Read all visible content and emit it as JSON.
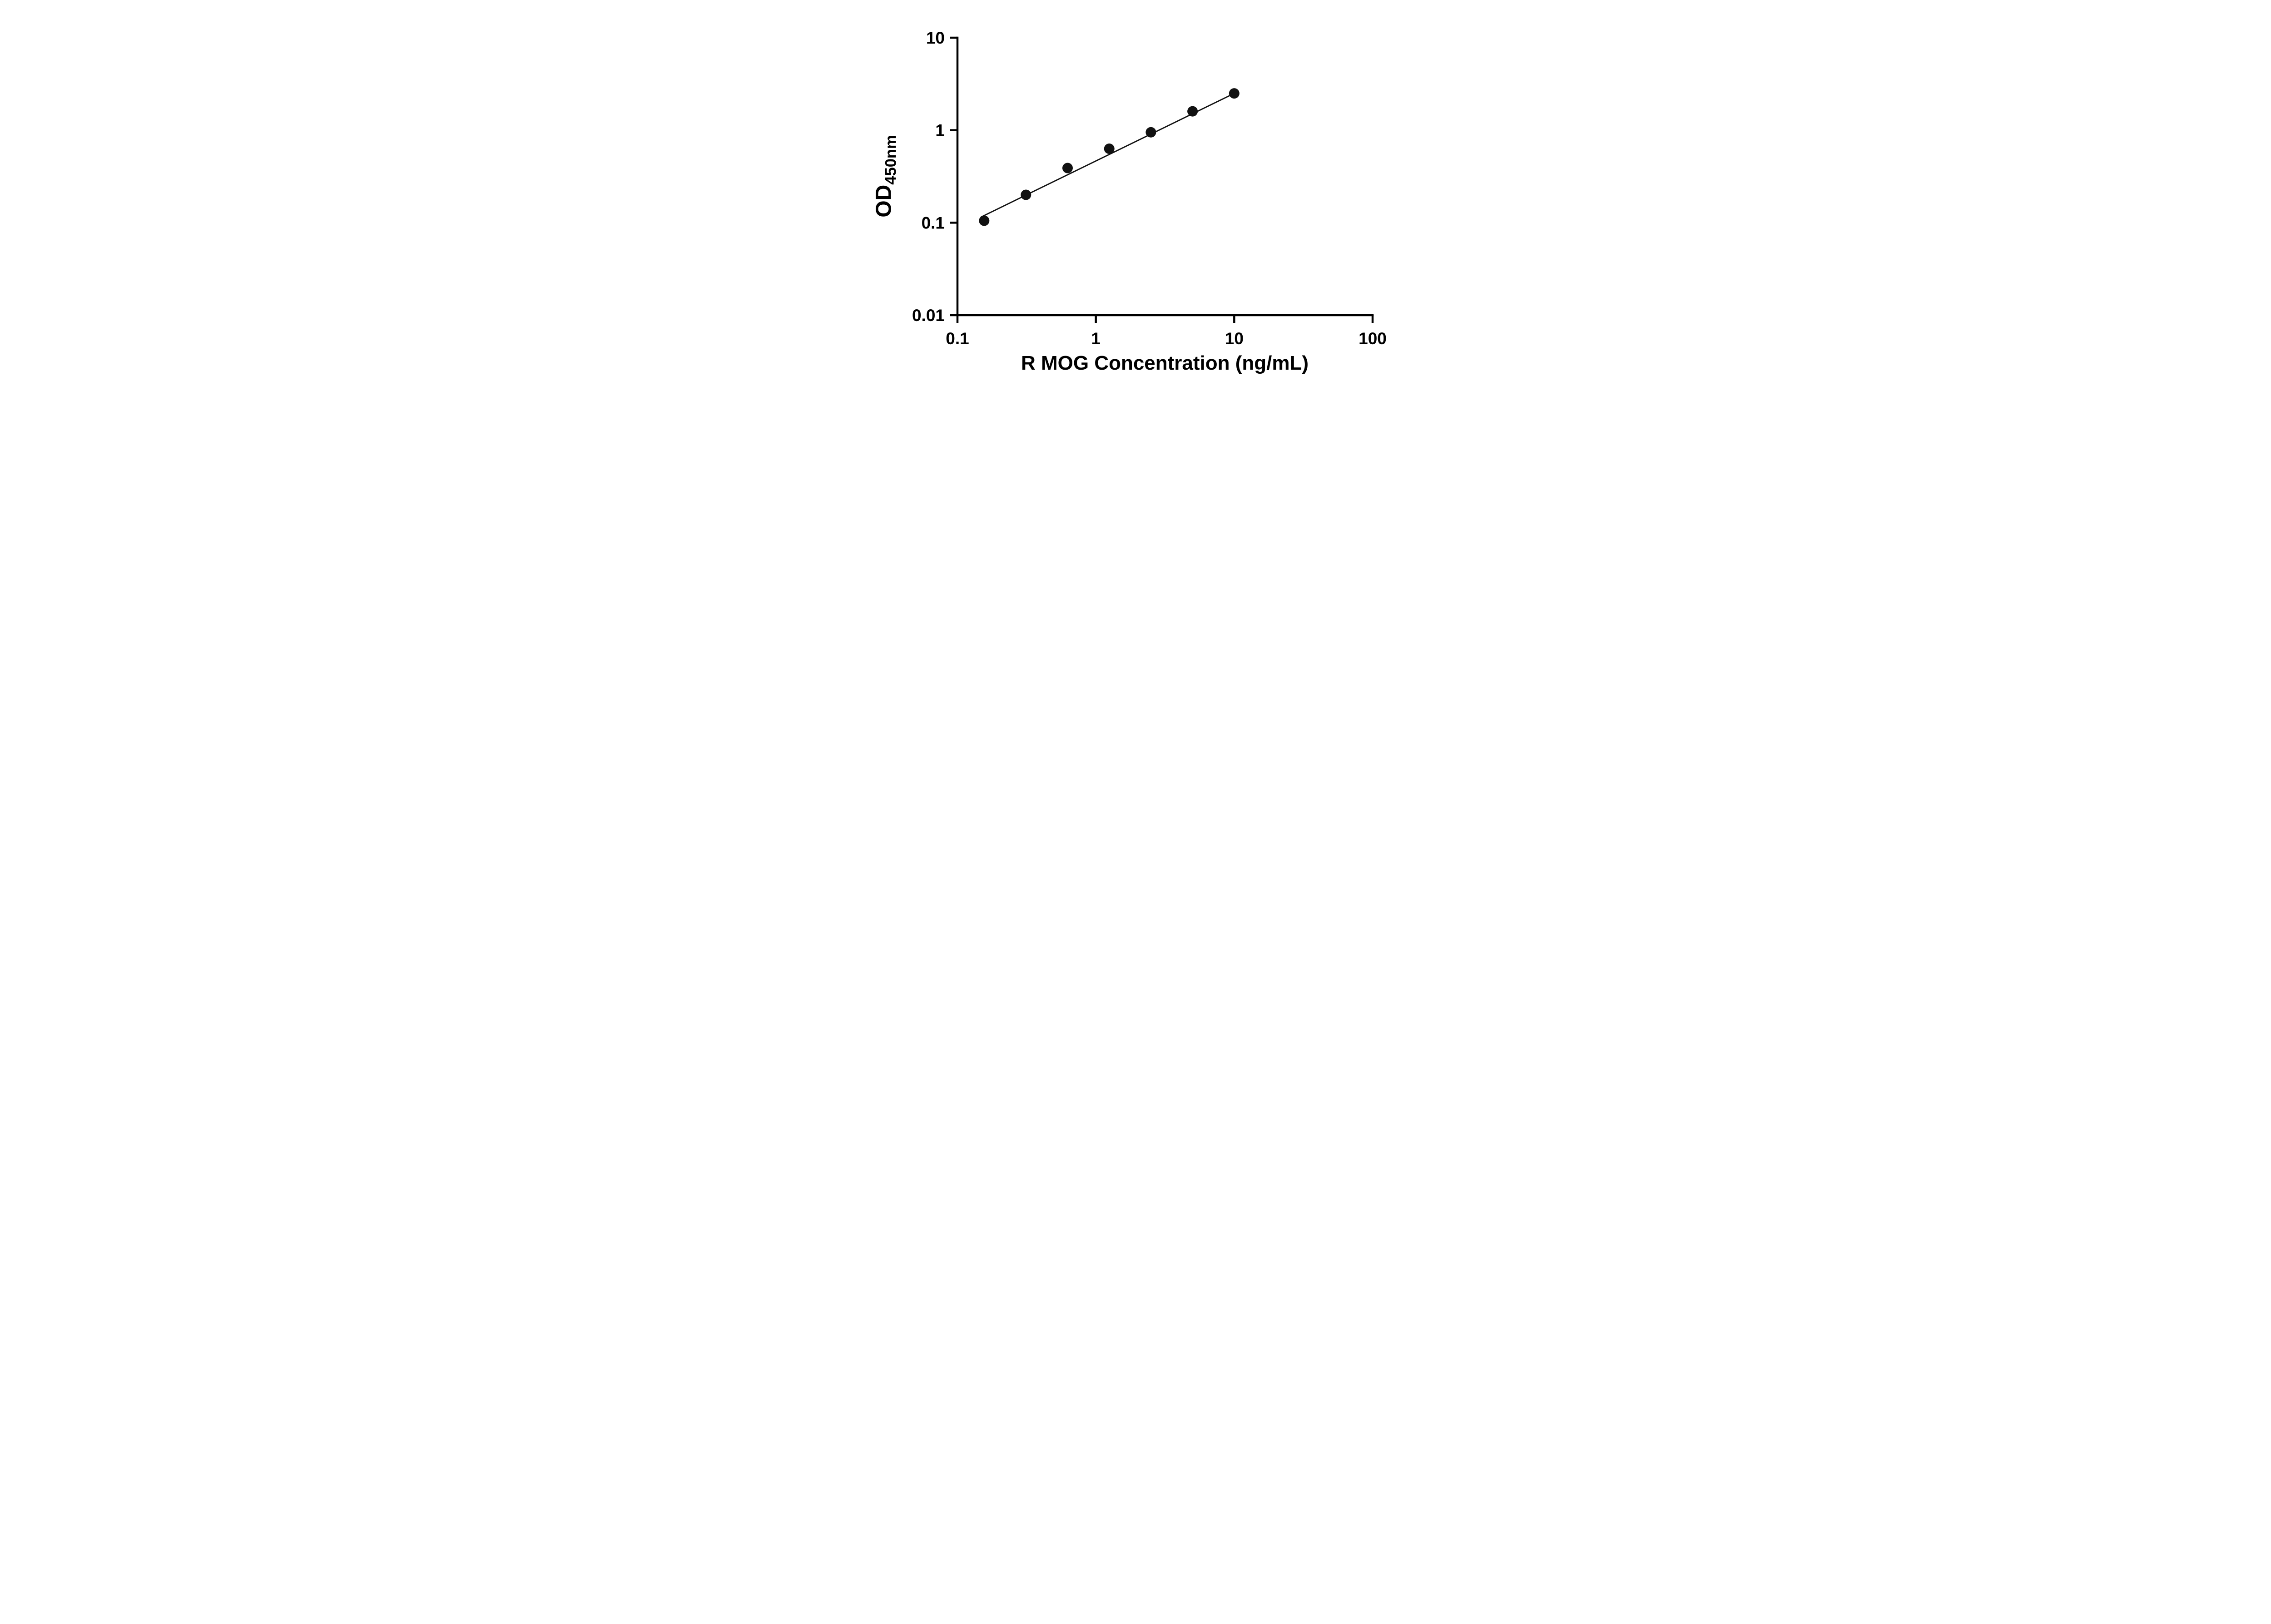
{
  "chart_data": {
    "type": "scatter",
    "title": "",
    "x_scale": "log",
    "y_scale": "log",
    "xlim": [
      0.1,
      100
    ],
    "ylim": [
      0.01,
      10
    ],
    "x_ticks": [
      0.1,
      1,
      10,
      100
    ],
    "x_tick_labels": [
      "0.1",
      "1",
      "10",
      "100"
    ],
    "y_ticks": [
      0.01,
      0.1,
      1,
      10
    ],
    "y_tick_labels": [
      "0.01",
      "0.1",
      "1",
      "10"
    ],
    "points": [
      {
        "x": 0.156,
        "y": 0.105
      },
      {
        "x": 0.3125,
        "y": 0.2
      },
      {
        "x": 0.625,
        "y": 0.39
      },
      {
        "x": 1.25,
        "y": 0.63
      },
      {
        "x": 2.5,
        "y": 0.95
      },
      {
        "x": 5,
        "y": 1.6
      },
      {
        "x": 10,
        "y": 2.5
      }
    ],
    "fit_line": [
      {
        "x": 0.148,
        "y": 0.115
      },
      {
        "x": 10.0,
        "y": 2.5
      }
    ],
    "xlabel": "R MOG Concentration (ng/mL)",
    "ylabel_main": "OD",
    "ylabel_sub": "450nm",
    "grid": false,
    "legend": "none",
    "marker_color": "#111111",
    "line_color": "#111111",
    "axis_color": "#000000",
    "background": "#ffffff"
  }
}
